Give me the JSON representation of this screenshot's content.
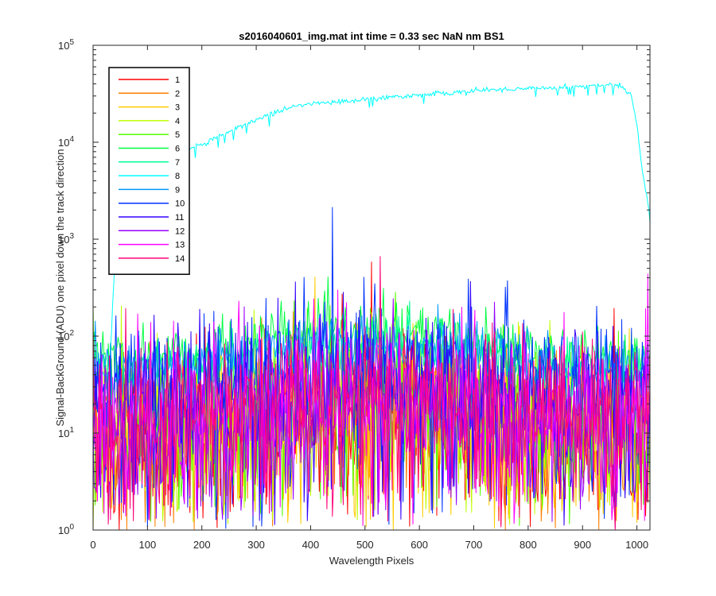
{
  "chart_data": {
    "type": "line",
    "title": "s2016040601_img.mat int time = 0.33 sec  NaN nm BS1",
    "xlabel": "Wavelength Pixels",
    "ylabel": "Signal-BackGround (ADU) one pixel down the track direction",
    "xlim": [
      0,
      1024
    ],
    "ylim": [
      1,
      100000
    ],
    "yscale": "log",
    "grid": false,
    "legend_position": "top-left",
    "x_ticks": [
      "0",
      "100",
      "200",
      "300",
      "400",
      "500",
      "600",
      "700",
      "800",
      "900",
      "1000"
    ],
    "y_ticks": [
      {
        "base": "10",
        "exp": "0"
      },
      {
        "base": "10",
        "exp": "1"
      },
      {
        "base": "10",
        "exp": "2"
      },
      {
        "base": "10",
        "exp": "3"
      },
      {
        "base": "10",
        "exp": "4"
      },
      {
        "base": "10",
        "exp": "5"
      }
    ],
    "series": [
      {
        "name": "1",
        "color": "#ff0000",
        "level": 10
      },
      {
        "name": "2",
        "color": "#ff7f00",
        "level": 10
      },
      {
        "name": "3",
        "color": "#ffcc00",
        "level": 10
      },
      {
        "name": "4",
        "color": "#bfff00",
        "level": 10
      },
      {
        "name": "5",
        "color": "#55ff00",
        "level": 12
      },
      {
        "name": "6",
        "color": "#00ff40",
        "level": 60
      },
      {
        "name": "7",
        "color": "#00ff99",
        "level": 40
      },
      {
        "name": "8",
        "color": "#00ffff",
        "level": 25000,
        "profile_x": [
          0,
          10,
          20,
          30,
          40,
          60,
          80,
          100,
          140,
          170,
          200,
          250,
          300,
          350,
          400,
          450,
          500,
          550,
          600,
          650,
          700,
          750,
          800,
          850,
          900,
          950,
          970,
          990,
          1000,
          1010,
          1024
        ],
        "profile_y": [
          60,
          45,
          40,
          40,
          600,
          3000,
          6000,
          7000,
          7500,
          8000,
          9500,
          13000,
          17000,
          22000,
          25000,
          26000,
          28000,
          29000,
          31000,
          32000,
          34000,
          35000,
          36000,
          37000,
          38000,
          39000,
          38000,
          30000,
          15000,
          5000,
          1800
        ]
      },
      {
        "name": "9",
        "color": "#0099ff",
        "level": 45
      },
      {
        "name": "10",
        "color": "#0033ff",
        "level": 25
      },
      {
        "name": "11",
        "color": "#3300ff",
        "level": 18
      },
      {
        "name": "12",
        "color": "#9900ff",
        "level": 10
      },
      {
        "name": "13",
        "color": "#ff00ff",
        "level": 14
      },
      {
        "name": "14",
        "color": "#ff0077",
        "level": 14
      }
    ]
  }
}
